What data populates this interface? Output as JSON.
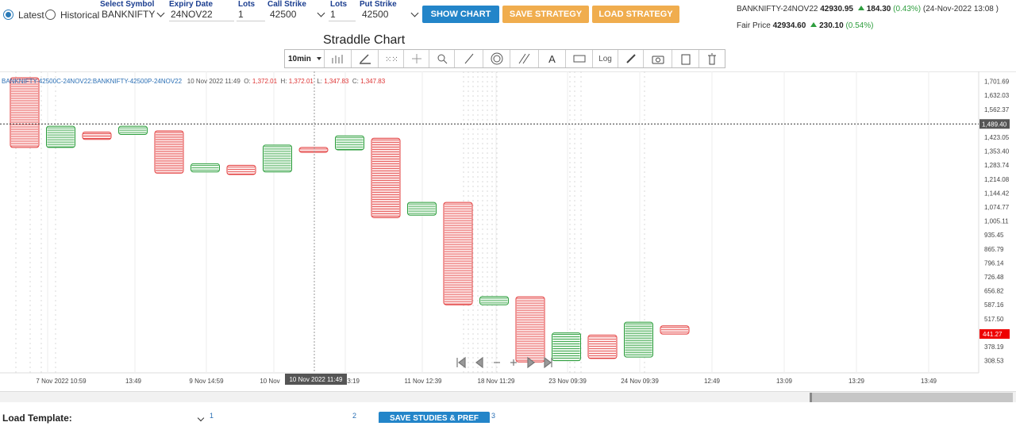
{
  "controls": {
    "latest_label": "Latest",
    "historical_label": "Historical",
    "mode": "latest",
    "symbol_label": "Select Symbol",
    "symbol_value": "BANKNIFTY",
    "expiry_label": "Expiry Date",
    "expiry_value": "24NOV22",
    "call_lots_label": "Lots",
    "call_lots_value": "1",
    "call_strike_label": "Call Strike",
    "call_strike_value": "42500",
    "put_lots_label": "Lots",
    "put_lots_value": "1",
    "put_strike_label": "Put Strike",
    "put_strike_value": "42500",
    "show_chart": "SHOW CHART",
    "save_strategy": "SAVE STRATEGY",
    "load_strategy": "LOAD STRATEGY"
  },
  "quote": {
    "symbol": "BANKNIFTY-24NOV22",
    "price": "42930.95",
    "change": "184.30",
    "change_pct": "(0.43%)",
    "timestamp": "(24-Nov-2022 13:08 )",
    "fair_label": "Fair Price",
    "fair_price": "42934.60",
    "fair_change": "230.10",
    "fair_change_pct": "(0.54%)"
  },
  "chart_title": "Straddle Chart",
  "toolbar": {
    "interval": "10min",
    "log_label": "Log"
  },
  "ohlc": {
    "symbol": "BANKNIFTY-42500C-24NOV22:BANKNIFTY-42500P-24NOV22",
    "datetime": "10 Nov 2022 11:49",
    "o_label": "O:",
    "o": "1,372.01",
    "h_label": "H:",
    "h": "1,372.01",
    "l_label": "L:",
    "l": "1,347.83",
    "c_label": "C:",
    "c": "1,347.83"
  },
  "chart_data": {
    "type": "candlestick",
    "y_ticks": [
      "1,701.69",
      "1,632.03",
      "1,562.37",
      "1,423.05",
      "1,353.40",
      "1,283.74",
      "1,214.08",
      "1,144.42",
      "1,074.77",
      "1,005.11",
      "935.45",
      "865.79",
      "796.14",
      "726.48",
      "656.82",
      "587.16",
      "517.50",
      "378.19",
      "308.53"
    ],
    "x_ticks": [
      "7 Nov 2022 10:59",
      "13:49",
      "9 Nov 14:59",
      "10 Nov",
      "13:19",
      "11 Nov 12:39",
      "18 Nov 11:29",
      "23 Nov 09:39",
      "24 Nov 09:39",
      "12:49",
      "13:09",
      "13:29",
      "13:49"
    ],
    "crosshair_y_label": "1,489.40",
    "last_price_label": "441.27",
    "crosshair_x_label": "10 Nov 2022 11:49",
    "y_range": [
      283,
      1720
    ],
    "candles": [
      {
        "open": 1372,
        "close": 1720,
        "dir": "down"
      },
      {
        "open": 1372,
        "close": 1478,
        "dir": "up"
      },
      {
        "open": 1412,
        "close": 1449,
        "dir": "down"
      },
      {
        "open": 1437,
        "close": 1478,
        "dir": "up"
      },
      {
        "open": 1244,
        "close": 1455,
        "dir": "down"
      },
      {
        "open": 1250,
        "close": 1291,
        "dir": "up"
      },
      {
        "open": 1237,
        "close": 1283,
        "dir": "down"
      },
      {
        "open": 1250,
        "close": 1384,
        "dir": "up"
      },
      {
        "open": 1348,
        "close": 1372,
        "dir": "down"
      },
      {
        "open": 1360,
        "close": 1430,
        "dir": "up"
      },
      {
        "open": 1022,
        "close": 1418,
        "dir": "down"
      },
      {
        "open": 1034,
        "close": 1098,
        "dir": "up"
      },
      {
        "open": 587,
        "close": 1098,
        "dir": "down"
      },
      {
        "open": 587,
        "close": 628,
        "dir": "up"
      },
      {
        "open": 302,
        "close": 627,
        "dir": "down"
      },
      {
        "open": 308,
        "close": 447,
        "dir": "up"
      },
      {
        "open": 319,
        "close": 436,
        "dir": "down"
      },
      {
        "open": 326,
        "close": 500,
        "dir": "up"
      },
      {
        "open": 441,
        "close": 482,
        "dir": "down"
      }
    ]
  },
  "bottom": {
    "load_template_label": "Load Template:",
    "save_studies": "SAVE STUDIES & PREF",
    "n1": "1",
    "n2": "2",
    "n3": "3"
  }
}
